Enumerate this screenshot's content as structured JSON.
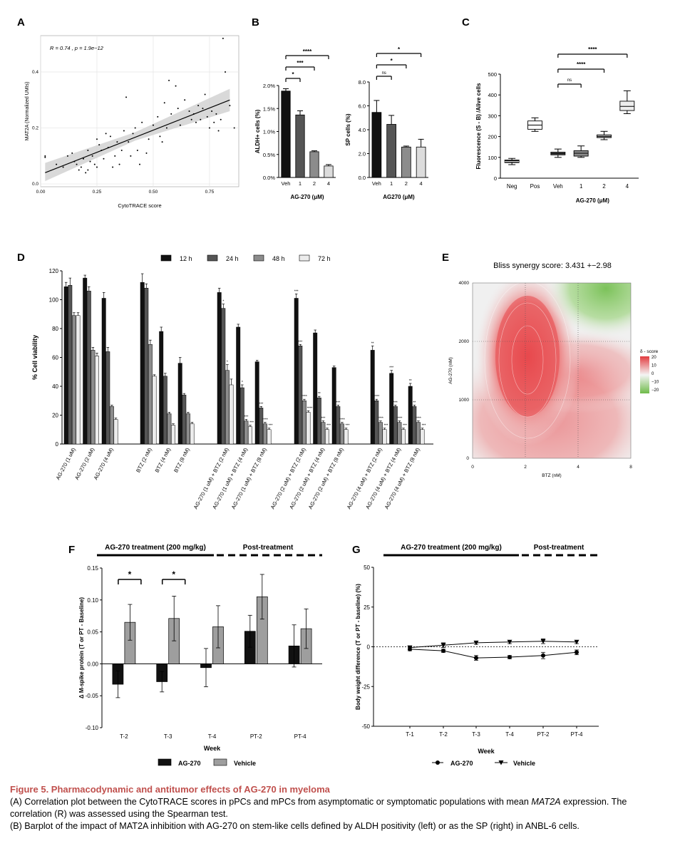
{
  "chart_data": [
    {
      "panel": "A",
      "type": "scatter",
      "annotation": "R = 0.74 , p = 1.9e−12",
      "xlabel": "CytoTRACE score",
      "ylabel": "MAT2A (Normalized UMIs)",
      "xlim": [
        0,
        0.88
      ],
      "ylim": [
        -0.01,
        0.53
      ],
      "xticks": [
        "0.00",
        "0.25",
        "0.50",
        "0.75"
      ],
      "yticks": [
        "0.0",
        "0.2",
        "0.4"
      ],
      "grid": true,
      "fit": {
        "x": [
          0.02,
          0.84
        ],
        "y": [
          0.04,
          0.3
        ],
        "band": [
          [
            0.02,
            0.01,
            0.075
          ],
          [
            0.42,
            0.155,
            0.185
          ],
          [
            0.84,
            0.26,
            0.34
          ]
        ]
      },
      "points": [
        [
          0.02,
          0.1
        ],
        [
          0.02,
          0.095
        ],
        [
          0.07,
          0.07
        ],
        [
          0.1,
          0.06
        ],
        [
          0.12,
          0.1
        ],
        [
          0.14,
          0.11
        ],
        [
          0.15,
          0.08
        ],
        [
          0.16,
          0.07
        ],
        [
          0.17,
          0.05
        ],
        [
          0.18,
          0.06
        ],
        [
          0.19,
          0.09
        ],
        [
          0.2,
          0.04
        ],
        [
          0.21,
          0.05
        ],
        [
          0.21,
          0.12
        ],
        [
          0.22,
          0.08
        ],
        [
          0.23,
          0.1
        ],
        [
          0.24,
          0.07
        ],
        [
          0.25,
          0.16
        ],
        [
          0.25,
          0.06
        ],
        [
          0.26,
          0.14
        ],
        [
          0.27,
          0.12
        ],
        [
          0.28,
          0.09
        ],
        [
          0.29,
          0.18
        ],
        [
          0.3,
          0.13
        ],
        [
          0.31,
          0.17
        ],
        [
          0.32,
          0.06
        ],
        [
          0.33,
          0.1
        ],
        [
          0.34,
          0.15
        ],
        [
          0.35,
          0.07
        ],
        [
          0.36,
          0.12
        ],
        [
          0.37,
          0.19
        ],
        [
          0.38,
          0.31
        ],
        [
          0.39,
          0.15
        ],
        [
          0.4,
          0.1
        ],
        [
          0.41,
          0.18
        ],
        [
          0.42,
          0.2
        ],
        [
          0.43,
          0.12
        ],
        [
          0.44,
          0.07
        ],
        [
          0.45,
          0.22
        ],
        [
          0.47,
          0.11
        ],
        [
          0.48,
          0.16
        ],
        [
          0.5,
          0.21
        ],
        [
          0.52,
          0.24
        ],
        [
          0.53,
          0.17
        ],
        [
          0.54,
          0.15
        ],
        [
          0.55,
          0.29
        ],
        [
          0.56,
          0.2
        ],
        [
          0.57,
          0.37
        ],
        [
          0.58,
          0.25
        ],
        [
          0.6,
          0.35
        ],
        [
          0.61,
          0.27
        ],
        [
          0.62,
          0.21
        ],
        [
          0.64,
          0.3
        ],
        [
          0.66,
          0.26
        ],
        [
          0.67,
          0.23
        ],
        [
          0.68,
          0.25
        ],
        [
          0.69,
          0.22
        ],
        [
          0.7,
          0.28
        ],
        [
          0.71,
          0.23
        ],
        [
          0.72,
          0.27
        ],
        [
          0.73,
          0.32
        ],
        [
          0.74,
          0.24
        ],
        [
          0.75,
          0.2
        ],
        [
          0.76,
          0.26
        ],
        [
          0.77,
          0.22
        ],
        [
          0.78,
          0.25
        ],
        [
          0.79,
          0.19
        ],
        [
          0.8,
          0.23
        ],
        [
          0.81,
          0.52
        ],
        [
          0.82,
          0.4
        ],
        [
          0.84,
          0.28
        ],
        [
          0.86,
          0.2
        ]
      ]
    },
    {
      "panel": "B-left",
      "type": "bar",
      "categories": [
        "Veh",
        "1",
        "2",
        "4"
      ],
      "values": [
        1.88,
        1.36,
        0.56,
        0.25
      ],
      "errors": [
        0.05,
        0.09,
        0.02,
        0.03
      ],
      "colors": [
        "#111111",
        "#555555",
        "#8c8c8c",
        "#dcdcdc"
      ],
      "ylabel": "ALDH+ cells (%)",
      "xlabel": "AG-270 (μM)",
      "ylim": [
        0,
        2.0
      ],
      "yticks": [
        "0.0%",
        "0.5%",
        "1.0%",
        "1.5%",
        "2.0%"
      ],
      "significance": [
        {
          "from": 0,
          "to": 1,
          "label": "*"
        },
        {
          "from": 0,
          "to": 2,
          "label": "***"
        },
        {
          "from": 0,
          "to": 3,
          "label": "****"
        }
      ]
    },
    {
      "panel": "B-right",
      "type": "bar",
      "categories": [
        "Veh",
        "1",
        "2",
        "4"
      ],
      "values": [
        5.45,
        4.45,
        2.55,
        2.55
      ],
      "errors": [
        1.0,
        0.75,
        0.08,
        0.65
      ],
      "colors": [
        "#111111",
        "#555555",
        "#8c8c8c",
        "#dcdcdc"
      ],
      "ylabel": "SP cells (%)",
      "xlabel": "AG270 (μM)",
      "ylim": [
        0,
        8.0
      ],
      "yticks": [
        "0.0",
        "2.0",
        "4.0",
        "6.0",
        "8.0"
      ],
      "significance": [
        {
          "from": 0,
          "to": 1,
          "label": "ns"
        },
        {
          "from": 0,
          "to": 2,
          "label": "*"
        },
        {
          "from": 0,
          "to": 3,
          "label": "*"
        }
      ]
    },
    {
      "panel": "C",
      "type": "box",
      "categories": [
        "Neg",
        "Pos",
        "Veh",
        "1",
        "2",
        "4"
      ],
      "boxes": [
        [
          65,
          75,
          80,
          87,
          95
        ],
        [
          225,
          235,
          255,
          275,
          290
        ],
        [
          100,
          112,
          118,
          125,
          140
        ],
        [
          100,
          106,
          120,
          132,
          155
        ],
        [
          185,
          195,
          200,
          208,
          225
        ],
        [
          310,
          325,
          345,
          370,
          420
        ]
      ],
      "colors": [
        "#111111",
        "#ffffff",
        "#555555",
        "#8c8c8c",
        "#b0b0b0",
        "#eeeeee"
      ],
      "ylabel": "Fluorescence (S - B) /Alive cells",
      "xlabel": "AG-270 (μM)",
      "ylim": [
        0,
        500
      ],
      "yticks": [
        "0",
        "100",
        "200",
        "300",
        "400",
        "500"
      ],
      "significance": [
        {
          "from": 2,
          "to": 3,
          "label": "ns"
        },
        {
          "from": 2,
          "to": 4,
          "label": "****"
        },
        {
          "from": 2,
          "to": 5,
          "label": "****"
        }
      ]
    },
    {
      "panel": "D",
      "type": "bar",
      "ylabel": "% Cell viability",
      "ylim": [
        0,
        120
      ],
      "yticks": [
        "0",
        "20",
        "40",
        "60",
        "80",
        "100",
        "120"
      ],
      "legend_position": "top",
      "series": [
        {
          "name": "12 h",
          "color": "#111111"
        },
        {
          "name": "24 h",
          "color": "#555555"
        },
        {
          "name": "48 h",
          "color": "#8c8c8c"
        },
        {
          "name": "72 h",
          "color": "#ececec"
        }
      ],
      "groups": [
        {
          "categories": [
            "AG-270 (1 uM)",
            "AG-270 (2 uM)",
            "AG-270 (4 uM)"
          ],
          "values": [
            [
              109,
              110,
              89,
              89
            ],
            [
              115,
              106,
              65,
              61
            ],
            [
              101,
              64,
              26,
              17
            ]
          ],
          "errors": [
            [
              3,
              5,
              2,
              2
            ],
            [
              2,
              3,
              2,
              2
            ],
            [
              4,
              3,
              1,
              1
            ]
          ],
          "stars": [
            [
              "",
              "",
              "",
              ""
            ],
            [
              "",
              "",
              "",
              ""
            ],
            [
              "",
              "",
              "",
              ""
            ]
          ]
        },
        {
          "categories": [
            "BTZ (2 nM)",
            "BTZ (4 nM)",
            "BTZ (8 nM)"
          ],
          "values": [
            [
              112,
              108,
              69,
              47
            ],
            [
              78,
              47,
              21,
              13
            ],
            [
              56,
              34,
              21,
              14
            ]
          ],
          "errors": [
            [
              6,
              3,
              3,
              1
            ],
            [
              3,
              2,
              1,
              1
            ],
            [
              4,
              1,
              1,
              1
            ]
          ],
          "stars": [
            [
              "",
              "",
              "",
              ""
            ],
            [
              "",
              "",
              "",
              ""
            ],
            [
              "",
              "",
              "",
              ""
            ]
          ]
        },
        {
          "categories": [
            "AG-270 (1 uM) + BTZ (2 nM)",
            "AG-270 (1 uM) + BTZ (4 nM)",
            "AG-270 (1 uM) + BTZ (8 nM)"
          ],
          "values": [
            [
              105,
              94,
              51,
              41
            ],
            [
              81,
              39,
              16,
              12
            ],
            [
              57,
              25,
              14,
              10
            ]
          ],
          "errors": [
            [
              3,
              3,
              4,
              4
            ],
            [
              2,
              2,
              1,
              1
            ],
            [
              1,
              1,
              1,
              1
            ]
          ],
          "stars": [
            [
              "",
              "*",
              "*",
              ""
            ],
            [
              "",
              "*",
              "***",
              "***"
            ],
            [
              "",
              "***",
              "****",
              "***"
            ]
          ]
        },
        {
          "categories": [
            "AG-270 (2 uM) + BTZ (2 nM)",
            "AG-270 (2 uM) + BTZ (4 nM)",
            "AG-270 (2 uM) + BTZ (8 nM)"
          ],
          "values": [
            [
              101,
              68,
              30,
              22
            ],
            [
              77,
              32,
              15,
              10
            ],
            [
              53,
              26,
              14,
              10
            ]
          ],
          "errors": [
            [
              3,
              1,
              1,
              1
            ],
            [
              2,
              1,
              1,
              1
            ],
            [
              1,
              1,
              1,
              1
            ]
          ],
          "stars": [
            [
              "***",
              "***",
              "****",
              "****"
            ],
            [
              "",
              "**",
              "***",
              "***"
            ],
            [
              "",
              "***",
              "****",
              "***"
            ]
          ]
        },
        {
          "categories": [
            "AG-270 (4 uM) + BTZ (2 nM)",
            "AG-270 (4 uM) + BTZ (4 nM)",
            "AG-270 (4 uM) + BTZ (8 nM)"
          ],
          "values": [
            [
              65,
              30,
              15,
              10
            ],
            [
              49,
              26,
              15,
              10
            ],
            [
              40,
              26,
              15,
              10
            ]
          ],
          "errors": [
            [
              3,
              1,
              1,
              1
            ],
            [
              2,
              1,
              1,
              1
            ],
            [
              2,
              1,
              1,
              1
            ]
          ],
          "stars": [
            [
              "**",
              "****",
              "****",
              "***"
            ],
            [
              "***",
              "***",
              "****",
              "***"
            ],
            [
              "**",
              "**",
              "****",
              "***"
            ]
          ]
        }
      ]
    },
    {
      "panel": "E",
      "type": "heatmap",
      "title": "Bliss synergy score: 3.431 +−2.98",
      "xlabel": "BTZ (nM)",
      "ylabel": "AG-270 (nM)",
      "xticks": [
        "0",
        "2",
        "4",
        "8"
      ],
      "yticks": [
        "0",
        "1000",
        "2000",
        "4000"
      ],
      "legend_title": "δ - score",
      "legend_ticks": [
        "20",
        "10",
        "0",
        "−10",
        "−20"
      ],
      "colors": {
        "synergy": "#e8484d",
        "neutral": "#f2f2f2",
        "antagonism": "#7cc25a"
      }
    },
    {
      "panel": "F",
      "type": "bar",
      "categories": [
        "T-2",
        "T-3",
        "T-4",
        "PT-2",
        "PT-4"
      ],
      "series": [
        {
          "name": "AG-270",
          "color": "#111111",
          "values": [
            -0.032,
            -0.028,
            -0.006,
            0.051,
            0.028
          ],
          "errors": [
            0.021,
            0.016,
            0.03,
            0.025,
            0.033
          ]
        },
        {
          "name": "Vehicle",
          "color": "#9e9e9e",
          "values": [
            0.065,
            0.071,
            0.058,
            0.105,
            0.055
          ],
          "errors": [
            0.028,
            0.035,
            0.033,
            0.035,
            0.031
          ]
        }
      ],
      "xlabel": "Week",
      "ylabel": "Δ M-spike protein (T or PT - Baseline)",
      "ylim": [
        -0.1,
        0.15
      ],
      "yticks": [
        "-0.10",
        "-0.05",
        "0.00",
        "0.05",
        "0.10",
        "0.15"
      ],
      "treatment_label": "AG-270 treatment (200 mg/kg)",
      "post_label": "Post-treatment",
      "significance": [
        {
          "category": 0,
          "label": "*"
        },
        {
          "category": 1,
          "label": "*"
        }
      ]
    },
    {
      "panel": "G",
      "type": "line",
      "categories": [
        "T-1",
        "T-2",
        "T-3",
        "T-4",
        "PT-2",
        "PT-4"
      ],
      "series": [
        {
          "name": "AG-270",
          "marker": "circle",
          "values": [
            -1.5,
            -2.5,
            -7.0,
            -6.5,
            -5.5,
            -3.5
          ],
          "errors": [
            1.0,
            1.0,
            1.5,
            1.0,
            2.0,
            1.5
          ]
        },
        {
          "name": "Vehicle",
          "marker": "triangle-down",
          "values": [
            -0.5,
            1.0,
            2.5,
            3.0,
            3.5,
            3.0
          ],
          "errors": [
            1.0,
            1.5,
            1.0,
            1.0,
            1.5,
            1.0
          ]
        }
      ],
      "xlabel": "Week",
      "ylabel": "Body weight difference (T or PT - baseline) (%)",
      "ylim": [
        -50,
        50
      ],
      "yticks": [
        "-50",
        "-25",
        "0",
        "25",
        "50"
      ],
      "treatment_label": "AG-270 treatment (200 mg/kg)",
      "post_label": "Post-treatment"
    }
  ],
  "caption": {
    "title": "Figure 5.  Pharmacodynamic and antitumor effects of AG-270 in myeloma",
    "a_pre": "(A) Correlation plot between the CytoTRACE scores in pPCs and mPCs from asymptomatic or symptomatic populations with mean ",
    "a_gene": "MAT2A",
    "a_post": " expression. The correlation (R) was assessed using the Spearman test.",
    "b": "(B) Barplot of the impact of MAT2A inhibition with AG-270 on stem-like cells defined by ALDH positivity (left) or as the SP (right) in ANBL-6 cells."
  },
  "panel_labels": [
    "A",
    "B",
    "C",
    "D",
    "E",
    "F",
    "G"
  ]
}
